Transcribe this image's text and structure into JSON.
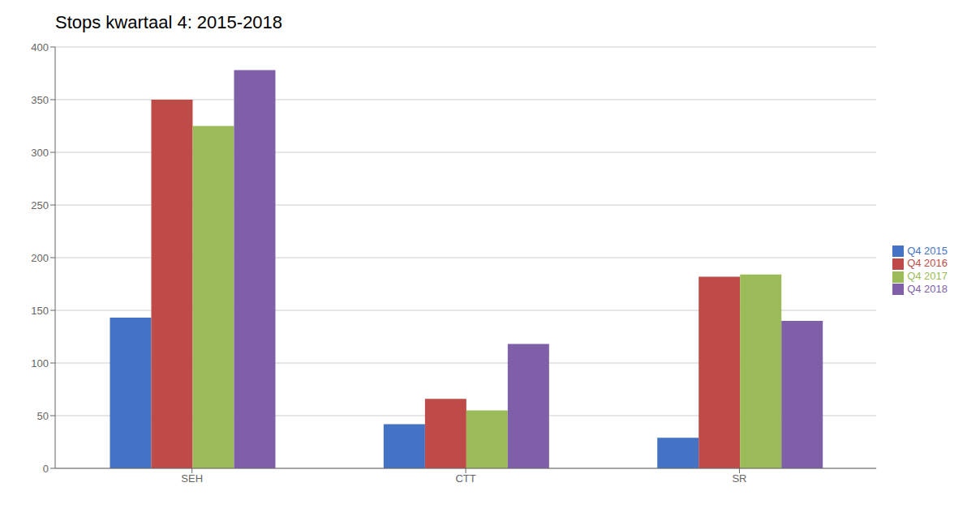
{
  "chart_data": {
    "type": "bar",
    "title": "Stops kwartaal 4: 2015-2018",
    "categories": [
      "SEH",
      "CTT",
      "SR"
    ],
    "series": [
      {
        "name": "Q4 2015",
        "color": "#4472C4",
        "values": [
          143,
          42,
          29
        ]
      },
      {
        "name": "Q4 2016",
        "color": "#BE4B48",
        "values": [
          350,
          66,
          182
        ]
      },
      {
        "name": "Q4 2017",
        "color": "#9BBB59",
        "values": [
          325,
          55,
          184
        ]
      },
      {
        "name": "Q4 2018",
        "color": "#7F5FA8",
        "values": [
          378,
          118,
          140
        ]
      }
    ],
    "ylim": [
      0,
      400
    ],
    "yticks": [
      0,
      50,
      100,
      150,
      200,
      250,
      300,
      350,
      400
    ],
    "grid": true,
    "legend": "right"
  }
}
